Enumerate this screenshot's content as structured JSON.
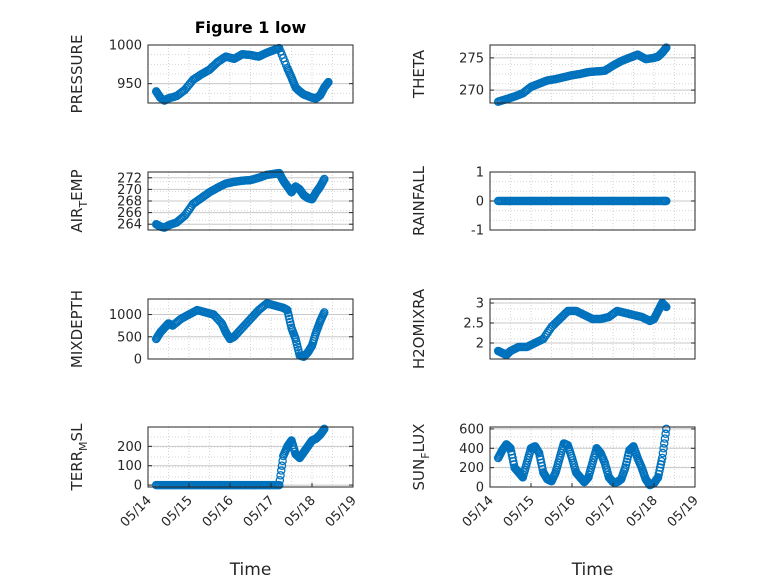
{
  "chart_data": [
    {
      "type": "scatter",
      "title": "Figure 1 low",
      "ylabel": "PRESSURE",
      "xlabel": "",
      "ylim": [
        925,
        1000
      ],
      "yticks": [
        950,
        1000
      ],
      "x": [
        0.2,
        0.3,
        0.4,
        0.5,
        0.7,
        0.9,
        1.1,
        1.3,
        1.5,
        1.7,
        1.9,
        2.1,
        2.3,
        2.5,
        2.7,
        2.9,
        3.1,
        3.2,
        3.4,
        3.5,
        3.6,
        3.7,
        3.8,
        3.9,
        4.0,
        4.1,
        4.2,
        4.3,
        4.4
      ],
      "y": [
        940,
        932,
        928,
        931,
        934,
        942,
        955,
        962,
        968,
        978,
        985,
        982,
        988,
        987,
        985,
        990,
        994,
        996,
        970,
        958,
        945,
        940,
        936,
        934,
        932,
        931,
        935,
        945,
        952
      ]
    },
    {
      "type": "scatter",
      "title": "",
      "ylabel": "THETA",
      "xlabel": "",
      "ylim": [
        268,
        277
      ],
      "yticks": [
        270,
        275
      ],
      "x": [
        0.2,
        0.4,
        0.6,
        0.8,
        1.0,
        1.2,
        1.4,
        1.6,
        1.8,
        2.0,
        2.2,
        2.4,
        2.6,
        2.8,
        3.0,
        3.2,
        3.4,
        3.6,
        3.8,
        4.0,
        4.1,
        4.2,
        4.3
      ],
      "y": [
        268.2,
        268.6,
        269,
        269.5,
        270.5,
        271,
        271.5,
        271.7,
        272,
        272.3,
        272.5,
        272.8,
        272.9,
        273,
        273.8,
        274.5,
        275,
        275.5,
        274.8,
        275,
        275.2,
        275.8,
        276.6
      ]
    },
    {
      "type": "scatter",
      "title": "",
      "ylabel": "AIR_TEMP",
      "xlabel": "",
      "ylim": [
        263,
        273
      ],
      "yticks": [
        264,
        266,
        268,
        270,
        272
      ],
      "x": [
        0.2,
        0.3,
        0.4,
        0.5,
        0.7,
        0.9,
        1.1,
        1.3,
        1.5,
        1.7,
        1.9,
        2.1,
        2.3,
        2.5,
        2.7,
        2.9,
        3.1,
        3.2,
        3.3,
        3.4,
        3.5,
        3.6,
        3.7,
        3.8,
        3.9,
        4.0,
        4.1,
        4.2,
        4.3
      ],
      "y": [
        264,
        263.6,
        263.4,
        263.8,
        264.3,
        265.5,
        267.5,
        268.5,
        269.5,
        270.3,
        271,
        271.3,
        271.5,
        271.6,
        272,
        272.5,
        272.7,
        272.8,
        271.5,
        270.5,
        269.5,
        270.5,
        270,
        269,
        268.5,
        268.3,
        269.5,
        270.5,
        271.8
      ]
    },
    {
      "type": "scatter",
      "title": "",
      "ylabel": "RAINFALL",
      "xlabel": "",
      "ylim": [
        -1,
        1
      ],
      "yticks": [
        -1,
        0,
        1
      ],
      "x": [
        0.2,
        0.4,
        0.6,
        0.8,
        1.0,
        1.2,
        1.4,
        1.6,
        1.8,
        2.0,
        2.2,
        2.4,
        2.6,
        2.8,
        3.0,
        3.2,
        3.4,
        3.6,
        3.8,
        4.0,
        4.2,
        4.3
      ],
      "y": [
        0,
        0,
        0,
        0,
        0,
        0,
        0,
        0,
        0,
        0,
        0,
        0,
        0,
        0,
        0,
        0,
        0,
        0,
        0,
        0,
        0,
        0
      ]
    },
    {
      "type": "scatter",
      "title": "",
      "ylabel": "MIXDEPTH",
      "xlabel": "",
      "ylim": [
        0,
        1350
      ],
      "yticks": [
        0,
        500,
        1000
      ],
      "x": [
        0.2,
        0.3,
        0.4,
        0.5,
        0.6,
        0.8,
        1.0,
        1.2,
        1.4,
        1.6,
        1.8,
        1.9,
        2.0,
        2.1,
        2.3,
        2.5,
        2.7,
        2.9,
        3.1,
        3.3,
        3.4,
        3.5,
        3.6,
        3.7,
        3.8,
        3.9,
        4.0,
        4.1,
        4.2,
        4.3
      ],
      "y": [
        450,
        600,
        700,
        800,
        750,
        900,
        1000,
        1100,
        1050,
        1000,
        800,
        600,
        450,
        500,
        700,
        900,
        1100,
        1250,
        1200,
        1150,
        1100,
        700,
        450,
        80,
        50,
        150,
        300,
        600,
        850,
        1050
      ]
    },
    {
      "type": "scatter",
      "title": "",
      "ylabel": "H2OMIXRA",
      "xlabel": "",
      "ylim": [
        1.6,
        3.1
      ],
      "yticks": [
        2,
        2.5,
        3
      ],
      "x": [
        0.2,
        0.3,
        0.4,
        0.5,
        0.7,
        0.9,
        1.1,
        1.3,
        1.5,
        1.7,
        1.9,
        2.1,
        2.3,
        2.5,
        2.7,
        2.9,
        3.1,
        3.3,
        3.5,
        3.7,
        3.9,
        4.0,
        4.1,
        4.2,
        4.3
      ],
      "y": [
        1.8,
        1.75,
        1.7,
        1.8,
        1.9,
        1.9,
        2,
        2.1,
        2.4,
        2.6,
        2.8,
        2.8,
        2.7,
        2.6,
        2.6,
        2.65,
        2.8,
        2.75,
        2.7,
        2.65,
        2.55,
        2.6,
        2.8,
        3,
        2.9
      ]
    },
    {
      "type": "scatter",
      "title": "",
      "ylabel": "TERR_MSL",
      "xlabel": "Time",
      "ylim": [
        -10,
        300
      ],
      "yticks": [
        0,
        100,
        200
      ],
      "x": [
        0.2,
        0.4,
        0.6,
        0.8,
        1.0,
        1.2,
        1.4,
        1.6,
        1.8,
        2.0,
        2.2,
        2.4,
        2.6,
        2.8,
        3.0,
        3.2,
        3.3,
        3.4,
        3.5,
        3.6,
        3.7,
        3.8,
        3.9,
        4.0,
        4.1,
        4.2,
        4.3
      ],
      "y": [
        0,
        0,
        0,
        0,
        0,
        0,
        0,
        0,
        0,
        0,
        0,
        0,
        0,
        0,
        0,
        0,
        150,
        200,
        230,
        160,
        140,
        170,
        200,
        230,
        240,
        260,
        290
      ],
      "xlim": [
        0,
        5
      ],
      "xticks": [
        "05/14",
        "05/15",
        "05/16",
        "05/17",
        "05/18",
        "05/19"
      ]
    },
    {
      "type": "scatter",
      "title": "",
      "ylabel": "SUN_FLUX",
      "xlabel": "Time",
      "ylim": [
        0,
        620
      ],
      "yticks": [
        0,
        200,
        400,
        600
      ],
      "x": [
        0.2,
        0.3,
        0.4,
        0.5,
        0.6,
        0.7,
        0.8,
        0.9,
        1.0,
        1.1,
        1.2,
        1.3,
        1.4,
        1.5,
        1.6,
        1.7,
        1.8,
        1.9,
        2.0,
        2.1,
        2.2,
        2.3,
        2.4,
        2.5,
        2.6,
        2.7,
        2.8,
        2.9,
        3.0,
        3.1,
        3.2,
        3.3,
        3.4,
        3.5,
        3.6,
        3.7,
        3.8,
        3.9,
        4.0,
        4.1,
        4.2,
        4.3
      ],
      "y": [
        300,
        380,
        440,
        400,
        200,
        150,
        100,
        250,
        400,
        420,
        350,
        150,
        80,
        60,
        150,
        300,
        450,
        430,
        300,
        150,
        100,
        50,
        100,
        250,
        400,
        350,
        250,
        100,
        50,
        50,
        80,
        200,
        380,
        420,
        300,
        200,
        80,
        20,
        40,
        100,
        300,
        600
      ],
      "xlim": [
        0,
        5
      ],
      "xticks": [
        "05/14",
        "05/15",
        "05/16",
        "05/17",
        "05/18",
        "05/19"
      ]
    }
  ]
}
